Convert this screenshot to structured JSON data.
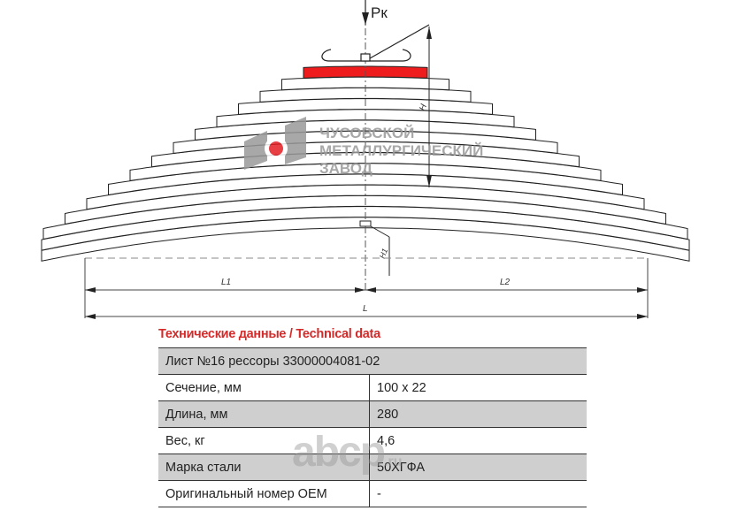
{
  "drawing": {
    "force_label": "Рк",
    "height_label": "H",
    "height1_label": "H1",
    "l1_label": "L1",
    "l2_label": "L2",
    "l_label": "L",
    "highlight_color": "#ee1c1c",
    "leaf_count": 15
  },
  "logo": {
    "line1": "ЧУСОВСКОЙ",
    "line2": "МЕТАЛЛУРГИЧЕСКИЙ",
    "line3": "ЗАВОД",
    "accent": "#e31e24"
  },
  "specs": {
    "title": "Технические данные / Technical data",
    "header": "Лист №16 рессоры 33000004081-02",
    "rows": [
      {
        "label": "Сечение, мм",
        "value": "100 x 22"
      },
      {
        "label": "Длина, мм",
        "value": "280"
      },
      {
        "label": "Вес, кг",
        "value": "4,6"
      },
      {
        "label": "Марка стали",
        "value": "50ХГФА"
      },
      {
        "label": "Оригинальный номер OEM",
        "value": "-"
      }
    ]
  },
  "watermark": {
    "text": "abcp",
    "suffix": ".ru"
  }
}
